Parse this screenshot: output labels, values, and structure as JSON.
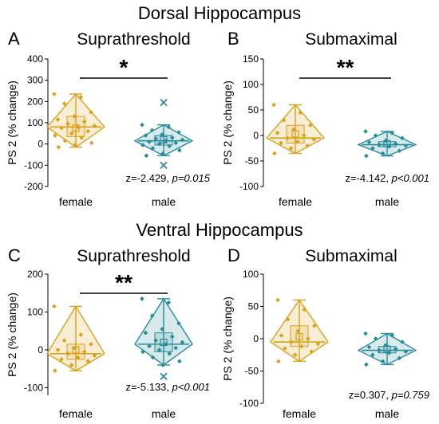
{
  "sections": {
    "dorsal_title": "Dorsal Hippocampus",
    "ventral_title": "Ventral Hippocampus"
  },
  "colors": {
    "female": "#D9A21B",
    "male": "#2A8C9A",
    "median_dot": "#E9A8B8"
  },
  "chart_data": [
    {
      "panel": "A",
      "type": "violin-box",
      "title": "Suprathreshold",
      "ylabel": "PS 2 (% change)",
      "ylim": [
        -200,
        400
      ],
      "yticks": [
        -200,
        -100,
        0,
        100,
        200,
        300,
        400
      ],
      "categories": [
        "female",
        "male"
      ],
      "stat_text": "z=-2.429, ",
      "stat_p": "p=0.015",
      "significance": "*",
      "groups": [
        {
          "name": "female",
          "q1": 35,
          "median": 80,
          "q3": 130,
          "mean": 75,
          "whisker_low": -15,
          "whisker_high": 235,
          "outliers": [],
          "points": [
            235,
            220,
            190,
            150,
            130,
            115,
            105,
            95,
            85,
            80,
            75,
            60,
            50,
            40,
            30,
            15,
            5,
            -5,
            -15
          ]
        },
        {
          "name": "male",
          "q1": -5,
          "median": 15,
          "q3": 40,
          "mean": 20,
          "whisker_low": -55,
          "whisker_high": 90,
          "outliers": [
            195,
            -100
          ],
          "points": [
            90,
            80,
            65,
            55,
            45,
            40,
            30,
            25,
            20,
            15,
            10,
            5,
            0,
            -5,
            -10,
            -20,
            -30,
            -45,
            -55
          ]
        }
      ]
    },
    {
      "panel": "B",
      "type": "violin-box",
      "title": "Submaximal",
      "ylabel": "PS 2 (% change)",
      "ylim": [
        -100,
        150
      ],
      "yticks": [
        -100,
        -50,
        0,
        50,
        100,
        150
      ],
      "categories": [
        "female",
        "male"
      ],
      "stat_text": "z=-4.142, ",
      "stat_p": "p<0.001",
      "significance": "**",
      "groups": [
        {
          "name": "female",
          "q1": -15,
          "median": -5,
          "q3": 20,
          "mean": 3,
          "whisker_low": -35,
          "whisker_high": 60,
          "outliers": [],
          "points": [
            60,
            45,
            30,
            20,
            12,
            5,
            0,
            -5,
            -8,
            -12,
            -15,
            -20,
            -25,
            -35
          ]
        },
        {
          "name": "male",
          "q1": -22,
          "median": -18,
          "q3": -12,
          "mean": -16,
          "whisker_low": -40,
          "whisker_high": 8,
          "outliers": [],
          "points": [
            8,
            5,
            0,
            -5,
            -10,
            -13,
            -16,
            -18,
            -20,
            -22,
            -25,
            -30,
            -35,
            -40
          ]
        }
      ]
    },
    {
      "panel": "C",
      "type": "violin-box",
      "title": "Suprathreshold",
      "ylabel": "PS 2 (% change)",
      "ylim": [
        -120,
        200
      ],
      "yticks": [
        -100,
        0,
        100,
        200
      ],
      "categories": [
        "female",
        "male"
      ],
      "stat_text": "z=-5.133, ",
      "stat_p": "p<0.001",
      "significance": "**",
      "groups": [
        {
          "name": "female",
          "q1": -25,
          "median": -10,
          "q3": 15,
          "mean": 0,
          "whisker_low": -55,
          "whisker_high": 115,
          "outliers": [],
          "points": [
            115,
            40,
            25,
            15,
            5,
            0,
            -5,
            -10,
            -15,
            -20,
            -25,
            -30,
            -40,
            -55
          ]
        },
        {
          "name": "male",
          "q1": -5,
          "median": 15,
          "q3": 45,
          "mean": 20,
          "whisker_low": -40,
          "whisker_high": 135,
          "outliers": [
            -70
          ],
          "points": [
            135,
            125,
            90,
            70,
            55,
            45,
            35,
            25,
            20,
            15,
            10,
            5,
            0,
            -5,
            -10,
            -20,
            -30,
            -40
          ]
        }
      ]
    },
    {
      "panel": "D",
      "type": "violin-box",
      "title": "Submaximal",
      "ylabel": "PS 2 (% change)",
      "ylim": [
        -100,
        100
      ],
      "yticks": [
        -100,
        -50,
        0,
        50,
        100
      ],
      "categories": [
        "female",
        "male"
      ],
      "stat_text": "z=0.307, ",
      "stat_p": "p=0.759",
      "significance": "",
      "groups": [
        {
          "name": "female",
          "q1": -12,
          "median": -5,
          "q3": 20,
          "mean": 3,
          "whisker_low": -35,
          "whisker_high": 60,
          "outliers": [],
          "points": [
            60,
            45,
            30,
            20,
            12,
            5,
            0,
            -5,
            -8,
            -12,
            -15,
            -20,
            -25,
            -35
          ]
        },
        {
          "name": "male",
          "q1": -22,
          "median": -18,
          "q3": -12,
          "mean": -16,
          "whisker_low": -40,
          "whisker_high": 8,
          "outliers": [],
          "points": [
            8,
            5,
            0,
            -5,
            -10,
            -13,
            -16,
            -18,
            -20,
            -22,
            -25,
            -30,
            -35,
            -40
          ]
        }
      ]
    }
  ]
}
